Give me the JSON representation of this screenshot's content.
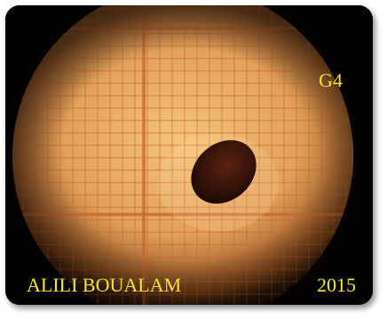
{
  "image": {
    "subject": "microscope-view",
    "colors": {
      "background": "#050301",
      "field_center": "#f5c47c",
      "field_mid": "#e3a05a",
      "field_edge": "#8a4a1c",
      "grid_line": "#c86a32",
      "specimen": "#2e0f08",
      "caption": "#f2e81a"
    }
  },
  "labels": {
    "sample_code": "G4",
    "author": "ALILI BOUALAM",
    "year": "2015"
  }
}
